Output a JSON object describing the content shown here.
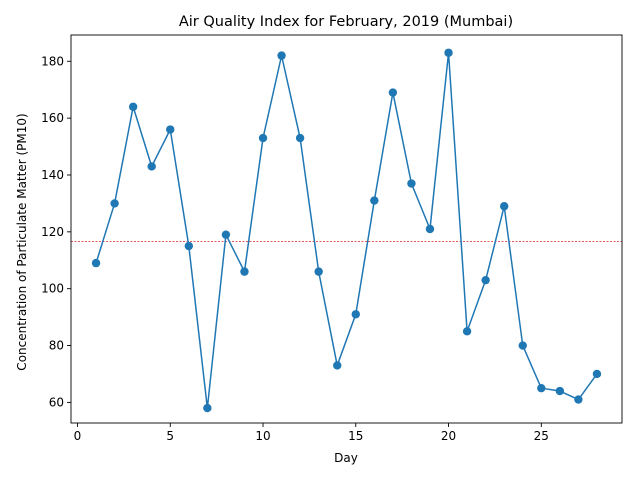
{
  "chart_data": {
    "type": "line",
    "title": "Air Quality Index for February, 2019 (Mumbai)",
    "xlabel": "Day",
    "ylabel": "Concentration of Particulate Matter (PM10)",
    "xlim": [
      -0.35,
      29.35
    ],
    "ylim": [
      52.75,
      189.25
    ],
    "xticks": [
      0,
      5,
      10,
      15,
      20,
      25
    ],
    "yticks": [
      60,
      80,
      100,
      120,
      140,
      160,
      180
    ],
    "grid": false,
    "legend": "none",
    "line_color": "#1f77b4",
    "reference_line": {
      "y": 116.6,
      "color": "#d62728",
      "style": "dashed"
    },
    "series": [
      {
        "x": [
          1,
          2,
          3,
          4,
          5,
          6,
          7,
          8,
          9,
          10,
          11,
          12,
          13,
          14,
          15,
          16,
          17,
          18,
          19,
          20,
          21,
          22,
          23,
          24,
          25,
          26,
          27,
          28
        ],
        "values": [
          109,
          130,
          164,
          143,
          156,
          115,
          58,
          119,
          106,
          153,
          182,
          153,
          106,
          73,
          91,
          131,
          169,
          137,
          121,
          183,
          85,
          103,
          129,
          80,
          65,
          64,
          61,
          70
        ]
      }
    ]
  }
}
